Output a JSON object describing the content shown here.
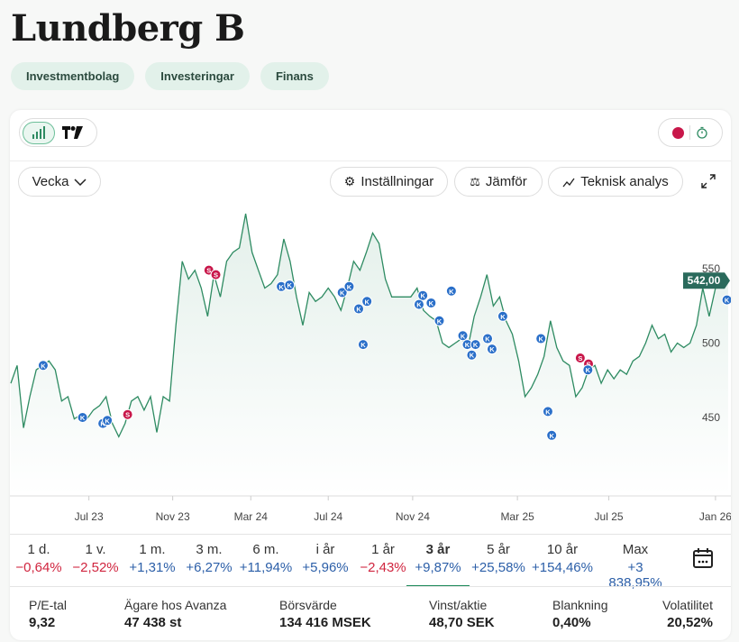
{
  "title": "Lundberg B",
  "tags": [
    "Investmentbolag",
    "Investeringar",
    "Finans"
  ],
  "toolbar": {
    "interval": "Vecka",
    "settings": "Inställningar",
    "compare": "Jämför",
    "technical": "Teknisk analys"
  },
  "colors": {
    "line": "#2e8b62",
    "price_tag": "#2a6a5c",
    "buy": "#2a6fc9",
    "sell": "#c8174a",
    "live_dot": "#c8174a"
  },
  "chart_data": {
    "type": "line",
    "ylim": [
      420,
      600
    ],
    "yticks": [
      450,
      500,
      550
    ],
    "last_price_label": "542,00",
    "values": [
      473,
      485,
      443,
      464,
      482,
      485,
      488,
      482,
      461,
      464,
      449,
      452,
      449,
      455,
      458,
      464,
      446,
      437,
      446,
      461,
      464,
      455,
      464,
      440,
      464,
      461,
      512,
      555,
      543,
      549,
      537,
      518,
      546,
      531,
      555,
      561,
      564,
      587,
      561,
      549,
      537,
      540,
      546,
      570,
      555,
      531,
      512,
      534,
      528,
      531,
      537,
      531,
      522,
      537,
      555,
      549,
      561,
      574,
      567,
      543,
      531,
      531,
      531,
      531,
      537,
      522,
      518,
      515,
      500,
      497,
      500,
      503,
      497,
      518,
      531,
      546,
      525,
      531,
      515,
      506,
      488,
      464,
      470,
      479,
      491,
      515,
      497,
      488,
      485,
      464,
      470,
      482,
      485,
      473,
      482,
      476,
      482,
      479,
      488,
      491,
      500,
      512,
      503,
      506,
      494,
      500,
      497,
      500,
      512,
      537,
      518,
      537,
      540,
      542
    ],
    "xticks": [
      {
        "label": "Jul 23",
        "index": 12.3
      },
      {
        "label": "Nov 23",
        "index": 25.5
      },
      {
        "label": "Mar 24",
        "index": 37.8
      },
      {
        "label": "Jul 24",
        "index": 50
      },
      {
        "label": "Nov 24",
        "index": 63.3
      },
      {
        "label": "Mar 25",
        "index": 79.8
      },
      {
        "label": "Jul 25",
        "index": 94.2
      },
      {
        "label": "Jan 26",
        "index": 111
      }
    ],
    "markers": [
      {
        "t": "K",
        "i": 5.1,
        "v": 485
      },
      {
        "t": "K",
        "i": 11.3,
        "v": 450
      },
      {
        "t": "K",
        "i": 14.5,
        "v": 446
      },
      {
        "t": "K",
        "i": 15.2,
        "v": 448
      },
      {
        "t": "S",
        "i": 18.4,
        "v": 452
      },
      {
        "t": "S",
        "i": 31.2,
        "v": 549
      },
      {
        "t": "S",
        "i": 32.3,
        "v": 546
      },
      {
        "t": "K",
        "i": 42.6,
        "v": 538
      },
      {
        "t": "K",
        "i": 43.9,
        "v": 539
      },
      {
        "t": "K",
        "i": 52.2,
        "v": 534
      },
      {
        "t": "K",
        "i": 53.3,
        "v": 538
      },
      {
        "t": "K",
        "i": 54.8,
        "v": 523
      },
      {
        "t": "K",
        "i": 56.1,
        "v": 528
      },
      {
        "t": "K",
        "i": 55.5,
        "v": 499
      },
      {
        "t": "K",
        "i": 64.9,
        "v": 532
      },
      {
        "t": "K",
        "i": 64.3,
        "v": 526
      },
      {
        "t": "K",
        "i": 66.2,
        "v": 527
      },
      {
        "t": "K",
        "i": 67.5,
        "v": 515
      },
      {
        "t": "K",
        "i": 69.4,
        "v": 535
      },
      {
        "t": "K",
        "i": 71.2,
        "v": 505
      },
      {
        "t": "K",
        "i": 71.9,
        "v": 499
      },
      {
        "t": "K",
        "i": 73.2,
        "v": 499
      },
      {
        "t": "K",
        "i": 72.6,
        "v": 492
      },
      {
        "t": "K",
        "i": 75.1,
        "v": 503
      },
      {
        "t": "K",
        "i": 75.8,
        "v": 496
      },
      {
        "t": "K",
        "i": 77.5,
        "v": 518
      },
      {
        "t": "K",
        "i": 83.5,
        "v": 503
      },
      {
        "t": "K",
        "i": 84.6,
        "v": 454
      },
      {
        "t": "K",
        "i": 85.2,
        "v": 438
      },
      {
        "t": "S",
        "i": 89.7,
        "v": 490
      },
      {
        "t": "S",
        "i": 91,
        "v": 486
      },
      {
        "t": "K",
        "i": 90.9,
        "v": 482
      },
      {
        "t": "K",
        "i": 112.8,
        "v": 529
      }
    ]
  },
  "periods": [
    {
      "label": "1 d.",
      "value": "−0,64%",
      "neg": true
    },
    {
      "label": "1 v.",
      "value": "−2,52%",
      "neg": true
    },
    {
      "label": "1 m.",
      "value": "+1,31%"
    },
    {
      "label": "3 m.",
      "value": "+6,27%"
    },
    {
      "label": "6 m.",
      "value": "+11,94%"
    },
    {
      "label": "i år",
      "value": "+5,96%"
    },
    {
      "label": "1 år",
      "value": "−2,43%",
      "neg": true
    },
    {
      "label": "3 år",
      "value": "+9,87%",
      "active": true
    },
    {
      "label": "5 år",
      "value": "+25,58%"
    },
    {
      "label": "10 år",
      "value": "+154,46%"
    },
    {
      "label": "Max",
      "value": "+3 838,95%"
    }
  ],
  "stats": [
    {
      "label": "P/E-tal",
      "value": "9,32"
    },
    {
      "label": "Ägare hos Avanza",
      "value": "47 438 st"
    },
    {
      "label": "Börsvärde",
      "value": "134 416 MSEK"
    },
    {
      "label": "Vinst/aktie",
      "value": "48,70 SEK"
    },
    {
      "label": "Blankning",
      "value": "0,40%"
    },
    {
      "label": "Volatilitet",
      "value": "20,52%"
    }
  ]
}
